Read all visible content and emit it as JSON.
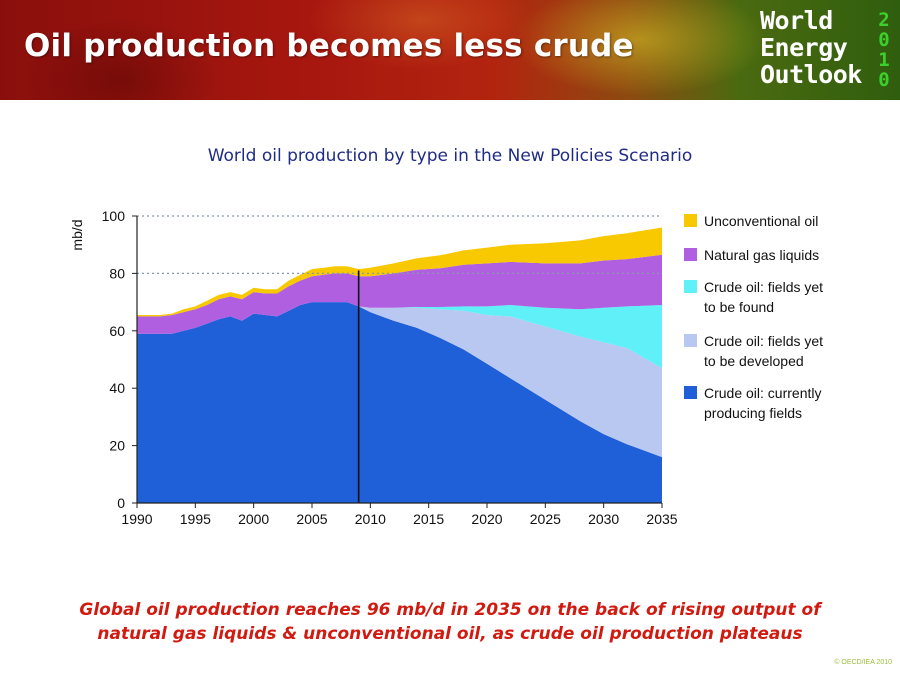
{
  "header": {
    "title": "Oil production becomes less crude",
    "logo": {
      "lines": [
        "World",
        "Energy",
        "Outlook"
      ],
      "year_digits": [
        "2",
        "0",
        "1",
        "0"
      ]
    }
  },
  "caption": {
    "line1": "Global oil production reaches 96 mb/d in 2035 on the back of rising output of",
    "line2": "natural gas liquids & unconventional oil, as crude oil production plateaus"
  },
  "copyright": "© OECD/IEA 2010",
  "chart_data": {
    "type": "area",
    "stacked": true,
    "title": "World oil production by type in the New Policies Scenario",
    "ylabel": "mb/d",
    "xlabel": "",
    "xlim": [
      1990,
      2035
    ],
    "ylim": [
      0,
      100
    ],
    "x_ticks": [
      1990,
      1995,
      2000,
      2005,
      2010,
      2015,
      2020,
      2025,
      2030,
      2035
    ],
    "y_ticks": [
      0,
      20,
      40,
      60,
      80,
      100
    ],
    "reference_gridlines": [
      80,
      100
    ],
    "divider_year": 2009,
    "legend_position": "right",
    "x": [
      1990,
      1991,
      1992,
      1993,
      1994,
      1995,
      1996,
      1997,
      1998,
      1999,
      2000,
      2001,
      2002,
      2003,
      2004,
      2005,
      2006,
      2007,
      2008,
      2009,
      2010,
      2012,
      2014,
      2016,
      2018,
      2020,
      2022,
      2025,
      2028,
      2030,
      2032,
      2035
    ],
    "series": [
      {
        "name": "Crude oil: currently producing fields",
        "color": "#1f5fd8",
        "values": [
          59,
          59,
          59,
          59,
          60,
          61,
          62.5,
          64,
          65,
          63.5,
          66,
          65.5,
          65,
          67,
          69,
          70,
          70,
          70,
          70,
          68.5,
          66.5,
          63.5,
          61,
          57.5,
          53.5,
          48.5,
          43.5,
          36,
          28.5,
          24,
          20.5,
          16
        ]
      },
      {
        "name": "Crude oil: fields yet to be developed",
        "color": "#b8c8f0",
        "values": [
          0,
          0,
          0,
          0,
          0,
          0,
          0,
          0,
          0,
          0,
          0,
          0,
          0,
          0,
          0,
          0,
          0,
          0,
          0,
          0,
          1.5,
          4.5,
          7,
          10,
          13.5,
          17,
          21.5,
          25.5,
          29.5,
          32,
          33.5,
          31
        ]
      },
      {
        "name": "Crude oil: fields yet to be found",
        "color": "#5ff0f8",
        "values": [
          0,
          0,
          0,
          0,
          0,
          0,
          0,
          0,
          0,
          0,
          0,
          0,
          0,
          0,
          0,
          0,
          0,
          0,
          0,
          0,
          0,
          0,
          0.3,
          0.8,
          1.5,
          3,
          4,
          6.5,
          9.5,
          12,
          14.5,
          22
        ]
      },
      {
        "name": "Natural gas liquids",
        "color": "#b05fe0",
        "values": [
          6,
          6,
          6,
          6.5,
          6.5,
          6.5,
          6.5,
          7,
          7,
          7.5,
          7.5,
          7.5,
          8,
          8.5,
          8.5,
          9,
          9.5,
          10,
          10,
          10.5,
          11,
          12,
          13,
          13.5,
          14.5,
          15,
          15,
          15.5,
          16,
          16.5,
          16.5,
          17.5
        ]
      },
      {
        "name": "Unconventional oil",
        "color": "#f8c800",
        "values": [
          0.5,
          0.5,
          0.5,
          0.5,
          1,
          1,
          1.5,
          1.5,
          1.5,
          1.5,
          1.5,
          1.5,
          1.5,
          2,
          2,
          2.5,
          2.5,
          2.5,
          2.5,
          2.5,
          3,
          3.5,
          4,
          4.5,
          5,
          5.5,
          6,
          7,
          8,
          8.5,
          9,
          9.5
        ]
      }
    ],
    "legend": [
      {
        "line1": "Unconventional oil",
        "line2": "",
        "color": "#f8c800"
      },
      {
        "line1": "Natural gas liquids",
        "line2": "",
        "color": "#b05fe0"
      },
      {
        "line1": "Crude oil: fields yet",
        "line2": "to be found",
        "color": "#5ff0f8"
      },
      {
        "line1": "Crude oil: fields yet",
        "line2": "to be developed",
        "color": "#b8c8f0"
      },
      {
        "line1": "Crude oil: currently",
        "line2": "producing fields",
        "color": "#1f5fd8"
      }
    ]
  }
}
